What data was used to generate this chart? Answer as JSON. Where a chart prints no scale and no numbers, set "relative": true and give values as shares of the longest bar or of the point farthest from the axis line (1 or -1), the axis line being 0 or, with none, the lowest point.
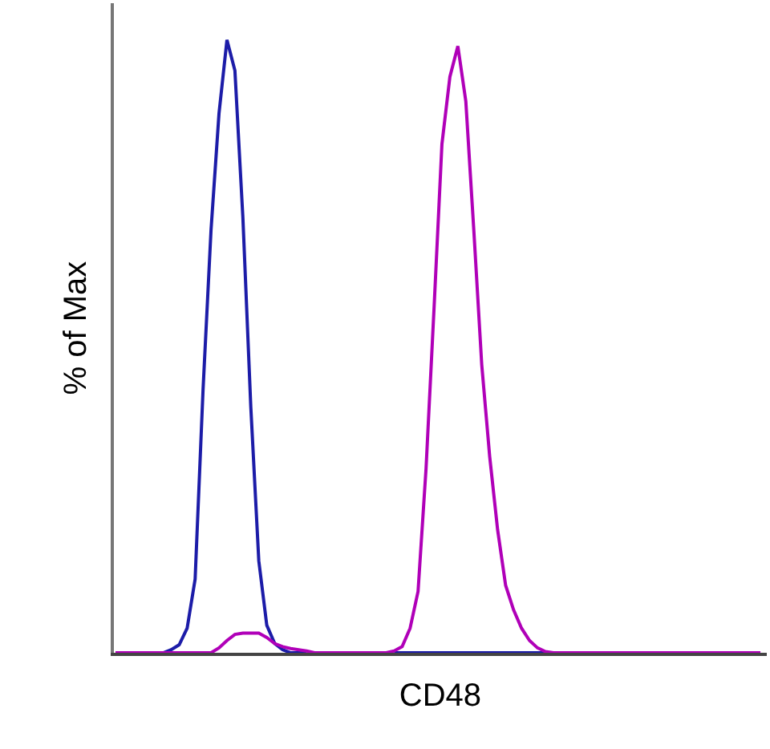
{
  "chart_data": {
    "type": "line",
    "relative": true,
    "xlabel": "CD48",
    "ylabel": "% of Max",
    "marker": "none",
    "line_style": "solid",
    "tick_labels": false,
    "categories": [
      null,
      null,
      null,
      null,
      null,
      null,
      null,
      null,
      null,
      null,
      null,
      null,
      null,
      null,
      null,
      null,
      null,
      null,
      null,
      null,
      null,
      null,
      null,
      null,
      null,
      null,
      null,
      null,
      null,
      null,
      null,
      null,
      null,
      null,
      null,
      null,
      null,
      null,
      null,
      null,
      null,
      null,
      null,
      null,
      null,
      null,
      null,
      null,
      null,
      null,
      null,
      null,
      null,
      null,
      null,
      null,
      null,
      null,
      null,
      null,
      null,
      null,
      null,
      null,
      null,
      null,
      null,
      null,
      null,
      null,
      null,
      null,
      null,
      null,
      null,
      null,
      null,
      null,
      null,
      null,
      null,
      null
    ],
    "series": [
      {
        "color": "#1c1ca8",
        "values": [
          null,
          null,
          null,
          null,
          null,
          0,
          0,
          0.005,
          0.013,
          0.04,
          0.12,
          0.43,
          0.69,
          0.88,
          1,
          0.95,
          0.71,
          0.4,
          0.15,
          0.045,
          0.015,
          0.005,
          0,
          0,
          0,
          null,
          null,
          null,
          null,
          null,
          null,
          null,
          null,
          null,
          null,
          0,
          0,
          0,
          0,
          0,
          0,
          0,
          0,
          0,
          0,
          0,
          0,
          0,
          0,
          0,
          0,
          0,
          0,
          0,
          0,
          null,
          null,
          null,
          null,
          null,
          null,
          null,
          null,
          null,
          null,
          null,
          null,
          null,
          null,
          null,
          null,
          null,
          null,
          null,
          null,
          null,
          null,
          null,
          null,
          null,
          null,
          null
        ]
      },
      {
        "color": "#b000b8",
        "values": [
          0,
          0,
          0,
          0,
          0,
          0,
          0,
          0,
          0,
          0,
          0,
          0,
          0,
          0.008,
          0.02,
          0.03,
          0.032,
          0.032,
          0.032,
          0.025,
          0.015,
          0.01,
          0.007,
          0.005,
          0.003,
          0,
          0,
          0,
          0,
          0,
          0,
          0,
          0,
          0,
          0,
          0.003,
          0.01,
          0.04,
          0.1,
          0.3,
          0.56,
          0.83,
          0.94,
          0.99,
          0.9,
          0.69,
          0.47,
          0.32,
          0.2,
          0.11,
          0.07,
          0.04,
          0.02,
          0.008,
          0.002,
          0,
          0,
          0,
          0,
          0,
          0,
          0,
          0,
          0,
          0,
          0,
          0,
          0,
          0,
          0,
          0,
          0,
          0,
          0,
          0,
          0,
          0,
          0,
          0,
          0,
          0,
          0
        ]
      }
    ]
  }
}
